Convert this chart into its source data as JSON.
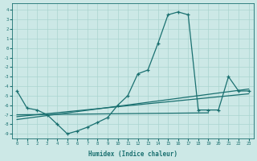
{
  "xlabel": "Humidex (Indice chaleur)",
  "bg_color": "#cce8e6",
  "grid_color": "#aad4d0",
  "line_color": "#1a7070",
  "xlim_min": -0.5,
  "xlim_max": 23.5,
  "ylim_min": -9.5,
  "ylim_max": 4.7,
  "main_x": [
    0,
    1,
    2,
    3,
    4,
    5,
    6,
    7,
    8,
    9,
    10,
    11,
    12,
    13,
    14,
    15,
    16,
    17,
    18,
    19,
    20,
    21,
    22,
    23
  ],
  "main_y": [
    -4.5,
    -6.3,
    -6.5,
    -7.0,
    -8.0,
    -9.0,
    -8.7,
    -8.3,
    -7.8,
    -7.3,
    -6.0,
    -5.0,
    -2.7,
    -2.3,
    0.5,
    3.5,
    3.8,
    3.5,
    -6.5,
    -6.5,
    -6.5,
    -3.0,
    -4.5,
    -4.5
  ],
  "line1_x": [
    0,
    19
  ],
  "line1_y": [
    -7.0,
    -6.8
  ],
  "line2_x": [
    0,
    23
  ],
  "line2_y": [
    -7.2,
    -4.8
  ],
  "line3_x": [
    0,
    23
  ],
  "line3_y": [
    -7.5,
    -4.3
  ]
}
